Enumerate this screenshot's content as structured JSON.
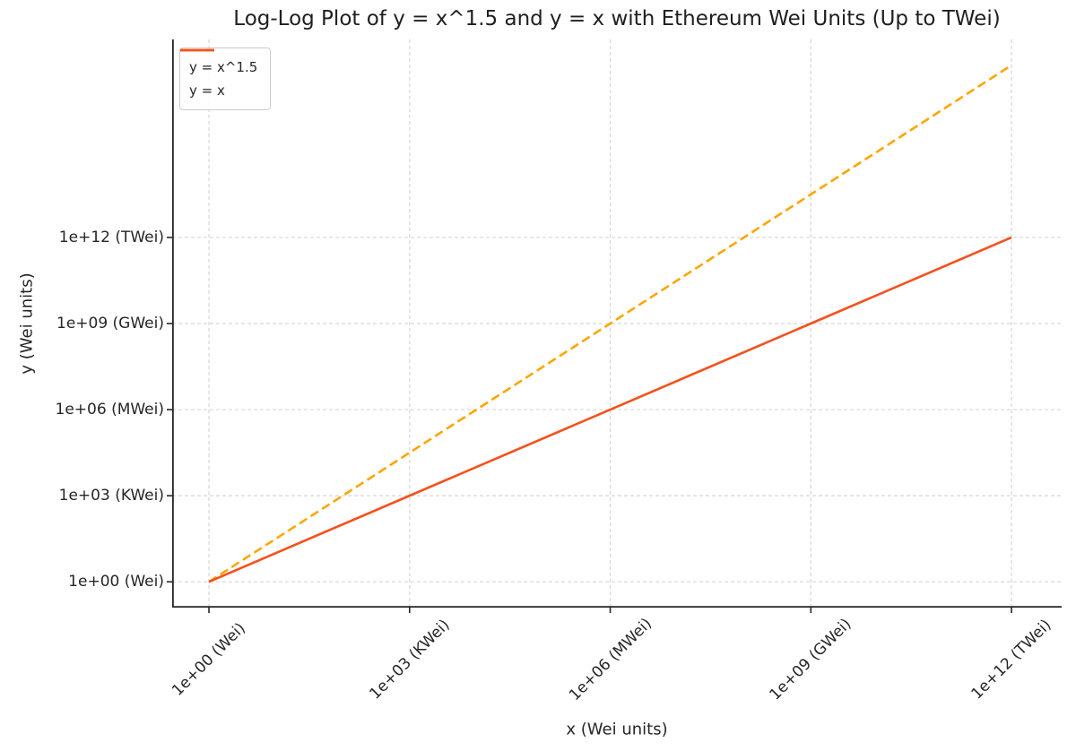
{
  "chart_data": {
    "type": "line",
    "title": "Log-Log Plot of y = x^1.5 and y = x with Ethereum Wei Units (Up to TWei)",
    "xlabel": "x (Wei units)",
    "ylabel": "y (Wei units)",
    "xscale": "log",
    "yscale": "log",
    "grid": true,
    "grid_style": "dashed",
    "legend_position": "upper-left",
    "xlim_exp": [
      -0.55,
      12.75
    ],
    "ylim_exp": [
      -0.9,
      18.9
    ],
    "xticks": [
      {
        "value": 1,
        "label": "1e+00 (Wei)"
      },
      {
        "value": 1000,
        "label": "1e+03 (KWei)"
      },
      {
        "value": 1000000,
        "label": "1e+06 (MWei)"
      },
      {
        "value": 1000000000,
        "label": "1e+09 (GWei)"
      },
      {
        "value": 1000000000000,
        "label": "1e+12 (TWei)"
      }
    ],
    "yticks": [
      {
        "value": 1,
        "label": "1e+00 (Wei)"
      },
      {
        "value": 1000,
        "label": "1e+03 (KWei)"
      },
      {
        "value": 1000000,
        "label": "1e+06 (MWei)"
      },
      {
        "value": 1000000000,
        "label": "1e+09 (GWei)"
      },
      {
        "value": 1000000000000,
        "label": "1e+12 (TWei)"
      }
    ],
    "series": [
      {
        "name": "y = x^1.5",
        "color": "#FFA500",
        "line_style": "dashed",
        "line_width": 2.6,
        "x": [
          1,
          1000,
          1000000,
          1000000000,
          1000000000000
        ],
        "y": [
          1,
          31622.776601683792,
          1000000000,
          31622776601683.79,
          1e+18
        ]
      },
      {
        "name": "y = x",
        "color": "#F4511E",
        "line_style": "solid",
        "line_width": 2.6,
        "x": [
          1,
          1000,
          1000000,
          1000000000,
          1000000000000
        ],
        "y": [
          1,
          1000,
          1000000,
          1000000000,
          1000000000000
        ]
      }
    ],
    "colors": {
      "grid": "#d6d6d6",
      "axis": "#262626",
      "text": "#262626",
      "legend_border": "#cccccc",
      "background": "#ffffff"
    }
  }
}
